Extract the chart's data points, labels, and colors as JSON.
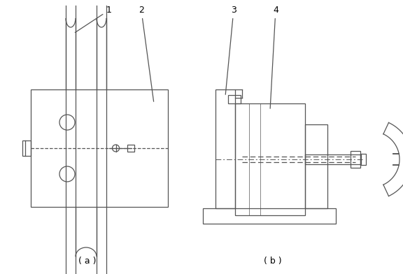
{
  "label_a": "( a )",
  "label_b": "( b )",
  "line_color": "#555555",
  "bg_color": "#ffffff",
  "font_size": 9,
  "lw": 0.9
}
